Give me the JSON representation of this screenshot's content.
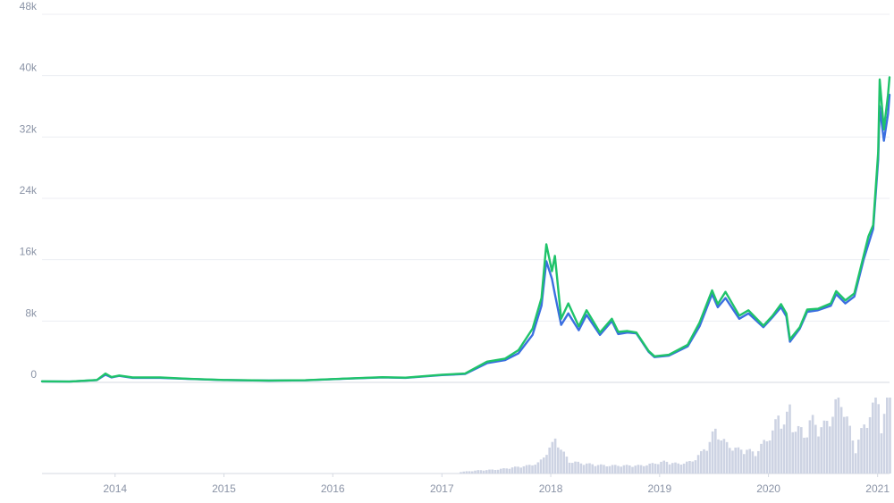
{
  "chart_data": {
    "type": "line",
    "title": "",
    "xlabel": "",
    "ylabel": "",
    "ylim": [
      0,
      48000
    ],
    "xlim": [
      "2013-05-01",
      "2021-02-10"
    ],
    "grid": true,
    "legend": "none",
    "y_ticks": [
      {
        "value": 0,
        "label": "0"
      },
      {
        "value": 8000,
        "label": "8k"
      },
      {
        "value": 16000,
        "label": "16k"
      },
      {
        "value": 24000,
        "label": "24k"
      },
      {
        "value": 32000,
        "label": "32k"
      },
      {
        "value": 40000,
        "label": "40k"
      },
      {
        "value": 48000,
        "label": "48k"
      }
    ],
    "x_ticks": [
      {
        "date": "2014-01-01",
        "label": "2014"
      },
      {
        "date": "2015-01-01",
        "label": "2015"
      },
      {
        "date": "2016-01-01",
        "label": "2016"
      },
      {
        "date": "2017-01-01",
        "label": "2017"
      },
      {
        "date": "2018-01-01",
        "label": "2018"
      },
      {
        "date": "2019-01-01",
        "label": "2019"
      },
      {
        "date": "2020-01-01",
        "label": "2020"
      },
      {
        "date": "2021-01-01",
        "label": "2021"
      }
    ],
    "colors": {
      "series_blue": "#3b6fe0",
      "series_green": "#1fc36a",
      "volume": "#cdd3e3",
      "grid": "#eceef3",
      "axis": "#d5d9e2",
      "tick_text": "#8a93a6"
    },
    "series": [
      {
        "key": "blue",
        "x": [
          "2013-05-01",
          "2013-08-01",
          "2013-11-01",
          "2013-11-30",
          "2013-12-20",
          "2014-01-15",
          "2014-03-01",
          "2014-06-01",
          "2014-09-01",
          "2015-01-01",
          "2015-06-01",
          "2015-10-01",
          "2016-01-01",
          "2016-06-15",
          "2016-09-01",
          "2017-01-01",
          "2017-03-20",
          "2017-06-01",
          "2017-08-01",
          "2017-09-15",
          "2017-11-01",
          "2017-12-01",
          "2017-12-17",
          "2018-01-05",
          "2018-01-15",
          "2018-02-05",
          "2018-03-01",
          "2018-04-05",
          "2018-05-01",
          "2018-06-15",
          "2018-07-25",
          "2018-08-15",
          "2018-09-15",
          "2018-10-15",
          "2018-11-25",
          "2018-12-15",
          "2019-02-01",
          "2019-04-05",
          "2019-05-15",
          "2019-06-26",
          "2019-07-15",
          "2019-08-10",
          "2019-09-25",
          "2019-10-26",
          "2019-12-15",
          "2020-01-15",
          "2020-02-12",
          "2020-03-01",
          "2020-03-13",
          "2020-04-15",
          "2020-05-10",
          "2020-06-15",
          "2020-07-28",
          "2020-08-15",
          "2020-09-15",
          "2020-10-15",
          "2020-11-15",
          "2020-12-01",
          "2020-12-17",
          "2021-01-03",
          "2021-01-08",
          "2021-01-22",
          "2021-02-05",
          "2021-02-10"
        ],
        "y": [
          130,
          100,
          300,
          1000,
          650,
          850,
          600,
          600,
          450,
          300,
          230,
          270,
          420,
          650,
          600,
          950,
          1100,
          2500,
          2900,
          3800,
          6200,
          10000,
          15800,
          13500,
          11500,
          7500,
          9000,
          6800,
          8800,
          6200,
          8000,
          6300,
          6500,
          6400,
          4000,
          3300,
          3500,
          4700,
          7300,
          11500,
          9800,
          11000,
          8300,
          9000,
          7200,
          8500,
          9800,
          8600,
          5300,
          7000,
          9200,
          9400,
          10000,
          11500,
          10300,
          11200,
          16000,
          18000,
          20000,
          29000,
          36000,
          31500,
          35000,
          37500
        ]
      },
      {
        "key": "green",
        "x": [
          "2013-05-01",
          "2013-08-01",
          "2013-11-01",
          "2013-11-30",
          "2013-12-20",
          "2014-01-15",
          "2014-03-01",
          "2014-06-01",
          "2014-09-01",
          "2015-01-01",
          "2015-06-01",
          "2015-10-01",
          "2016-01-01",
          "2016-06-15",
          "2016-09-01",
          "2017-01-01",
          "2017-03-20",
          "2017-06-01",
          "2017-08-01",
          "2017-09-15",
          "2017-11-01",
          "2017-12-01",
          "2017-12-17",
          "2018-01-05",
          "2018-01-15",
          "2018-02-05",
          "2018-03-01",
          "2018-04-05",
          "2018-05-01",
          "2018-06-15",
          "2018-07-25",
          "2018-08-15",
          "2018-09-15",
          "2018-10-15",
          "2018-11-25",
          "2018-12-15",
          "2019-02-01",
          "2019-04-05",
          "2019-05-15",
          "2019-06-26",
          "2019-07-15",
          "2019-08-10",
          "2019-09-25",
          "2019-10-26",
          "2019-12-15",
          "2020-01-15",
          "2020-02-12",
          "2020-03-01",
          "2020-03-13",
          "2020-04-15",
          "2020-05-10",
          "2020-06-15",
          "2020-07-28",
          "2020-08-15",
          "2020-09-15",
          "2020-10-15",
          "2020-11-15",
          "2020-12-01",
          "2020-12-17",
          "2021-01-03",
          "2021-01-08",
          "2021-01-22",
          "2021-02-05",
          "2021-02-10"
        ],
        "y": [
          135,
          105,
          320,
          1150,
          700,
          900,
          650,
          650,
          480,
          310,
          240,
          280,
          430,
          680,
          620,
          1000,
          1150,
          2700,
          3100,
          4200,
          7000,
          11000,
          18000,
          14500,
          16500,
          8300,
          10300,
          7300,
          9400,
          6500,
          8300,
          6600,
          6700,
          6500,
          4100,
          3400,
          3600,
          4900,
          7800,
          12000,
          10200,
          11800,
          8700,
          9400,
          7400,
          8700,
          10200,
          9000,
          5600,
          7200,
          9500,
          9600,
          10300,
          11900,
          10700,
          11600,
          16500,
          19000,
          20500,
          30000,
          39500,
          33000,
          37500,
          39800
        ]
      }
    ],
    "volume": {
      "x": [
        "2017-03-01",
        "2017-05-01",
        "2017-07-01",
        "2017-09-01",
        "2017-10-15",
        "2017-11-15",
        "2017-12-01",
        "2017-12-15",
        "2018-01-01",
        "2018-01-15",
        "2018-02-01",
        "2018-03-01",
        "2018-05-01",
        "2018-07-01",
        "2018-09-01",
        "2018-11-01",
        "2018-12-01",
        "2019-01-15",
        "2019-03-01",
        "2019-04-15",
        "2019-05-15",
        "2019-06-15",
        "2019-07-01",
        "2019-07-20",
        "2019-08-15",
        "2019-09-15",
        "2019-10-15",
        "2019-11-15",
        "2019-12-15",
        "2020-01-10",
        "2020-02-01",
        "2020-02-20",
        "2020-03-10",
        "2020-03-20",
        "2020-04-15",
        "2020-05-01",
        "2020-05-20",
        "2020-06-15",
        "2020-07-15",
        "2020-08-01",
        "2020-08-20",
        "2020-09-15",
        "2020-10-15",
        "2020-11-01",
        "2020-11-20",
        "2020-12-05",
        "2020-12-20",
        "2021-01-01",
        "2021-01-10",
        "2021-01-22",
        "2021-02-01",
        "2021-02-10"
      ],
      "y": [
        0.02,
        0.04,
        0.05,
        0.08,
        0.1,
        0.13,
        0.18,
        0.28,
        0.35,
        0.45,
        0.3,
        0.15,
        0.12,
        0.1,
        0.1,
        0.1,
        0.12,
        0.15,
        0.12,
        0.15,
        0.25,
        0.4,
        0.55,
        0.45,
        0.35,
        0.3,
        0.3,
        0.25,
        0.4,
        0.5,
        0.75,
        0.6,
        0.85,
        0.55,
        0.55,
        0.45,
        0.7,
        0.55,
        0.65,
        0.75,
        1.0,
        0.7,
        0.3,
        0.5,
        0.65,
        0.75,
        0.9,
        0.95,
        0.55,
        0.75,
        1.4,
        1.0
      ]
    }
  }
}
